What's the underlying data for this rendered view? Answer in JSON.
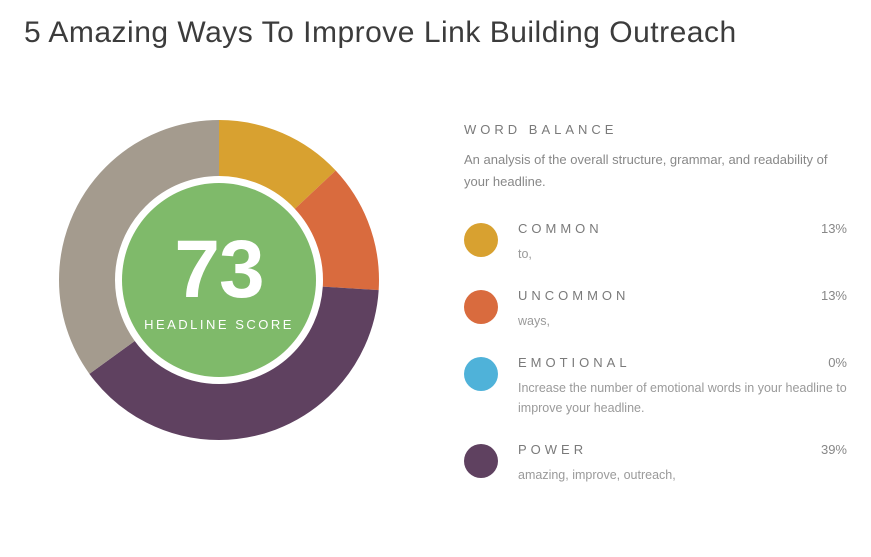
{
  "headline": "5 Amazing Ways To Improve Link Building Outreach",
  "score": {
    "value": "73",
    "label": "HEADLINE SCORE",
    "center_bg": "#7fba6a",
    "center_text": "#ffffff"
  },
  "donut": {
    "size": 320,
    "thickness": 56,
    "segments": [
      {
        "id": "common",
        "color": "#d8a130",
        "value": 13
      },
      {
        "id": "uncommon",
        "color": "#d96b3e",
        "value": 13
      },
      {
        "id": "power",
        "color": "#5f4160",
        "value": 39
      },
      {
        "id": "remainder",
        "color": "#a49b8e",
        "value": 35
      }
    ]
  },
  "wordBalance": {
    "title": "WORD BALANCE",
    "description": "An analysis of the overall structure, grammar, and readability of your headline.",
    "categories": [
      {
        "name": "COMMON",
        "pct": "13%",
        "color": "#d8a130",
        "sub": "to,"
      },
      {
        "name": "UNCOMMON",
        "pct": "13%",
        "color": "#d96b3e",
        "sub": "ways,"
      },
      {
        "name": "EMOTIONAL",
        "pct": "0%",
        "color": "#4fb2d9",
        "sub": "Increase the number of emotional words in your headline to improve your headline."
      },
      {
        "name": "POWER",
        "pct": "39%",
        "color": "#5f4160",
        "sub": "amazing, improve, outreach,"
      }
    ]
  }
}
